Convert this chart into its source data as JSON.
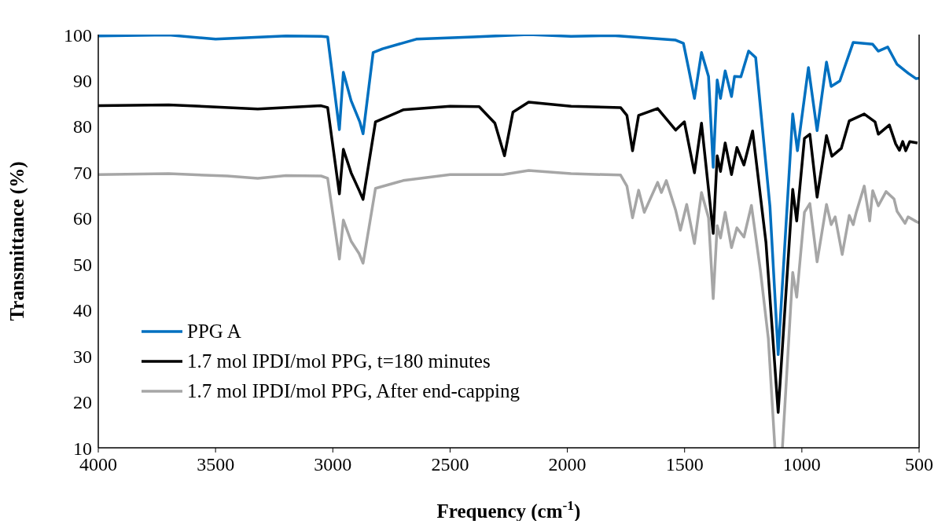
{
  "chart_data": {
    "type": "line",
    "xlabel": "Frequency (cm$^{-1}$)",
    "ylabel": "Transmittance (%)",
    "xlim": [
      4000,
      500
    ],
    "xticks": [
      4000,
      3500,
      3000,
      2500,
      2000,
      1500,
      1000,
      500
    ],
    "ylim": [
      10,
      100
    ],
    "yticks": [
      10,
      20,
      30,
      40,
      50,
      60,
      70,
      80,
      90,
      100
    ],
    "grid": false,
    "legend": "bottom left",
    "marker": "none",
    "line_style": "solid",
    "series": [
      {
        "name": "PPG A",
        "color": "#0070c0",
        "x": [
          4000,
          3700,
          3500,
          3200,
          3050,
          3022,
          2972,
          2955,
          2922,
          2885,
          2871,
          2828,
          2788,
          2644,
          2400,
          2165,
          1984,
          1806,
          1538,
          1505,
          1481,
          1458,
          1428,
          1398,
          1378,
          1361,
          1347,
          1327,
          1300,
          1287,
          1260,
          1227,
          1197,
          1136,
          1101,
          1039,
          1019,
          972,
          935,
          895,
          875,
          838,
          781,
          698,
          674,
          634,
          594,
          547,
          513,
          500
        ],
        "values": [
          99.7,
          99.9,
          99,
          99.7,
          99.6,
          99.5,
          79.3,
          91.8,
          85.6,
          81,
          78.4,
          96.1,
          96.9,
          99,
          99.5,
          100,
          99.6,
          99.8,
          98.8,
          98.1,
          92.1,
          86.1,
          96.1,
          90.9,
          71.1,
          90.1,
          86.1,
          92.1,
          86.5,
          90.9,
          90.8,
          96.4,
          95,
          62.5,
          30.3,
          82.7,
          74.7,
          92.8,
          79.1,
          94,
          88.7,
          89.9,
          98.3,
          97.9,
          96.4,
          97.3,
          93.5,
          91.6,
          90.4,
          90.5
        ]
      },
      {
        "name": "1.7 mol IPDI/mol PPG, t=180 minutes",
        "color": "#000000",
        "x": [
          4000,
          3700,
          3320,
          3050,
          3022,
          2972,
          2955,
          2922,
          2888,
          2871,
          2818,
          2700,
          2500,
          2376,
          2309,
          2268,
          2232,
          2165,
          1984,
          1773,
          1746,
          1722,
          1696,
          1615,
          1538,
          1501,
          1458,
          1428,
          1378,
          1361,
          1347,
          1327,
          1300,
          1277,
          1247,
          1210,
          1153,
          1101,
          1039,
          1022,
          989,
          966,
          935,
          895,
          872,
          832,
          798,
          734,
          688,
          674,
          627,
          600,
          584,
          570,
          557,
          540,
          507
        ],
        "values": [
          84.5,
          84.7,
          83.8,
          84.5,
          84.1,
          65.3,
          75,
          69.9,
          66.1,
          64.1,
          81,
          83.6,
          84.4,
          84.3,
          80.7,
          73.6,
          83.1,
          85.3,
          84.4,
          84.1,
          82.4,
          74.7,
          82.4,
          83.9,
          79.2,
          81,
          69.9,
          80.7,
          56.7,
          73.6,
          70.2,
          76.4,
          69.5,
          75.4,
          71.6,
          79,
          54.7,
          17.7,
          66.3,
          59.4,
          77.4,
          78.3,
          64.6,
          78,
          73.5,
          75.2,
          81.2,
          82.7,
          81,
          78.3,
          80.3,
          76.2,
          74.8,
          76.7,
          74.7,
          76.7,
          76.4
        ]
      },
      {
        "name": "1.7 mol IPDI/mol PPG, After end-capping",
        "color": "#a6a6a6",
        "x": [
          4000,
          3700,
          3450,
          3320,
          3200,
          3050,
          3022,
          2972,
          2955,
          2922,
          2888,
          2871,
          2818,
          2700,
          2500,
          2275,
          2165,
          1984,
          1773,
          1746,
          1722,
          1696,
          1672,
          1615,
          1599,
          1578,
          1538,
          1518,
          1491,
          1458,
          1428,
          1398,
          1378,
          1361,
          1347,
          1327,
          1300,
          1277,
          1247,
          1215,
          1177,
          1143,
          1115,
          1100,
          1083,
          1039,
          1022,
          989,
          966,
          935,
          895,
          875,
          858,
          828,
          798,
          781,
          768,
          734,
          711,
          698,
          674,
          641,
          607,
          594,
          560,
          547,
          513,
          500
        ],
        "values": [
          69.5,
          69.7,
          69.2,
          68.7,
          69.3,
          69.2,
          68.7,
          51.1,
          59.6,
          55,
          52.3,
          50.2,
          66.5,
          68.2,
          69.5,
          69.5,
          70.4,
          69.7,
          69.4,
          67,
          60.1,
          66.1,
          61.3,
          67.8,
          65.6,
          68.2,
          61.7,
          57.4,
          63,
          54.5,
          65.6,
          60.1,
          42.5,
          58.4,
          55.7,
          61.3,
          53.6,
          57.9,
          55.9,
          62.8,
          48.7,
          33.8,
          10,
          null,
          10,
          48.2,
          42.8,
          61.3,
          63.2,
          50.5,
          63,
          58.6,
          60.3,
          52.1,
          60.6,
          58.6,
          61.3,
          67,
          59.4,
          66,
          62.7,
          65.8,
          64.2,
          61.5,
          58.9,
          60.3,
          59.3,
          59
        ]
      }
    ]
  }
}
